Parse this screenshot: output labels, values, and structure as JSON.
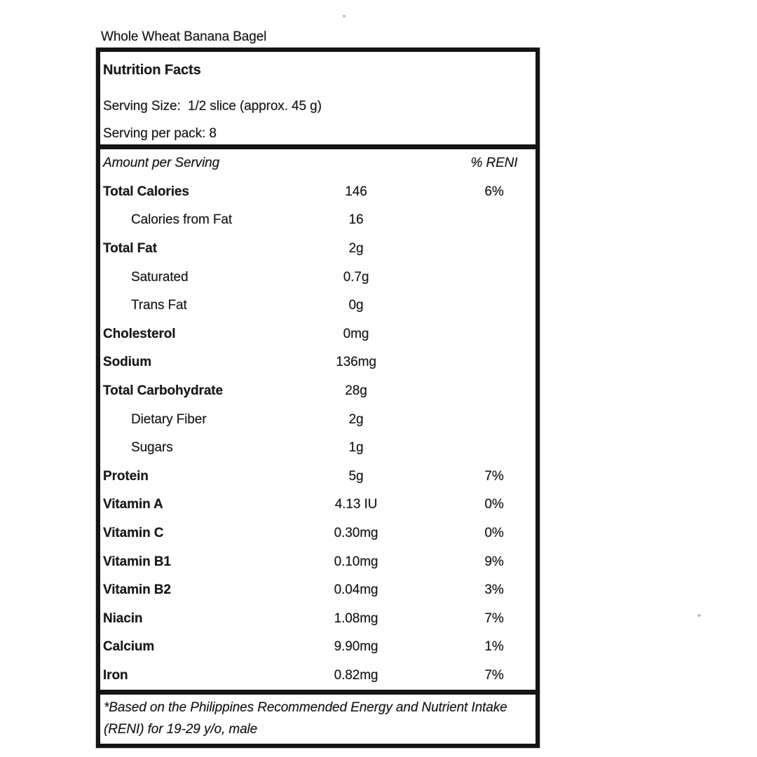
{
  "colors": {
    "ink": "#1a1a1a",
    "paper": "#ffffff",
    "border": "#141414"
  },
  "page": {
    "product_title": "Whole Wheat Banana Bagel"
  },
  "label": {
    "header": {
      "title": "Nutrition Facts",
      "serving_size": "Serving Size:  1/2 slice (approx. 45 g)",
      "servings_per_pack": "Serving per pack: 8"
    },
    "table": {
      "amount_header": "Amount per Serving",
      "reni_header": "% RENI",
      "rows": [
        {
          "label": "Total Calories",
          "amount": "146",
          "reni": "6%"
        },
        {
          "label": "Calories from Fat",
          "amount": "16",
          "reni": ""
        },
        {
          "label": "Total Fat",
          "amount": "2g",
          "reni": ""
        },
        {
          "label": "Saturated",
          "amount": "0.7g",
          "reni": ""
        },
        {
          "label": "Trans Fat",
          "amount": "0g",
          "reni": ""
        },
        {
          "label": "Cholesterol",
          "amount": "0mg",
          "reni": ""
        },
        {
          "label": "Sodium",
          "amount": "136mg",
          "reni": ""
        },
        {
          "label": "Total Carbohydrate",
          "amount": "28g",
          "reni": ""
        },
        {
          "label": "Dietary Fiber",
          "amount": "2g",
          "reni": ""
        },
        {
          "label": "Sugars",
          "amount": "1g",
          "reni": ""
        },
        {
          "label": "Protein",
          "amount": "5g",
          "reni": "7%"
        },
        {
          "label": "Vitamin A",
          "amount": "4.13 IU",
          "reni": "0%"
        },
        {
          "label": "Vitamin C",
          "amount": "0.30mg",
          "reni": "0%"
        },
        {
          "label": "Vitamin B1",
          "amount": "0.10mg",
          "reni": "9%"
        },
        {
          "label": "Vitamin B2",
          "amount": "0.04mg",
          "reni": "3%"
        },
        {
          "label": "Niacin",
          "amount": "1.08mg",
          "reni": "7%"
        },
        {
          "label": "Calcium",
          "amount": "9.90mg",
          "reni": "1%"
        },
        {
          "label": "Iron",
          "amount": "0.82mg",
          "reni": "7%"
        }
      ]
    },
    "footnote": {
      "line1": "*Based on the Philippines Recommended Energy and Nutrient Intake",
      "line2": "(RENI) for 19-29 y/o, male"
    }
  }
}
